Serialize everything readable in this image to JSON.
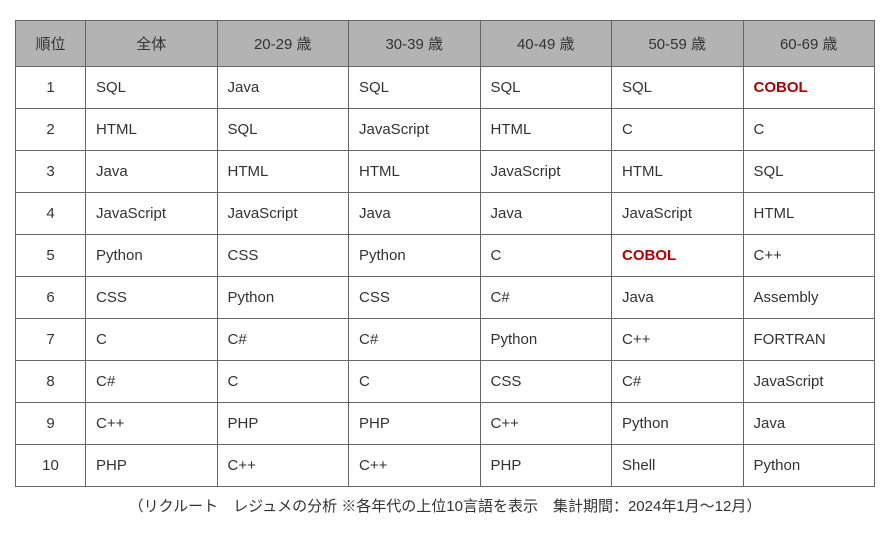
{
  "table": {
    "columns": [
      "順位",
      "全体",
      "20-29 歳",
      "30-39 歳",
      "40-49 歳",
      "50-59 歳",
      "60-69 歳"
    ],
    "column_widths": [
      "70px",
      "auto",
      "auto",
      "auto",
      "auto",
      "auto",
      "auto"
    ],
    "header_bg": "#b3b3b3",
    "border_color": "#666666",
    "text_color": "#333333",
    "highlight_color": "#b30000",
    "font_size": 15,
    "rows": [
      {
        "rank": "1",
        "cells": [
          {
            "text": "SQL",
            "hl": false
          },
          {
            "text": "Java",
            "hl": false
          },
          {
            "text": "SQL",
            "hl": false
          },
          {
            "text": "SQL",
            "hl": false
          },
          {
            "text": "SQL",
            "hl": false
          },
          {
            "text": "COBOL",
            "hl": true
          }
        ]
      },
      {
        "rank": "2",
        "cells": [
          {
            "text": "HTML",
            "hl": false
          },
          {
            "text": "SQL",
            "hl": false
          },
          {
            "text": "JavaScript",
            "hl": false
          },
          {
            "text": "HTML",
            "hl": false
          },
          {
            "text": "C",
            "hl": false
          },
          {
            "text": "C",
            "hl": false
          }
        ]
      },
      {
        "rank": "3",
        "cells": [
          {
            "text": "Java",
            "hl": false
          },
          {
            "text": "HTML",
            "hl": false
          },
          {
            "text": "HTML",
            "hl": false
          },
          {
            "text": "JavaScript",
            "hl": false
          },
          {
            "text": "HTML",
            "hl": false
          },
          {
            "text": "SQL",
            "hl": false
          }
        ]
      },
      {
        "rank": "4",
        "cells": [
          {
            "text": "JavaScript",
            "hl": false
          },
          {
            "text": "JavaScript",
            "hl": false
          },
          {
            "text": "Java",
            "hl": false
          },
          {
            "text": "Java",
            "hl": false
          },
          {
            "text": "JavaScript",
            "hl": false
          },
          {
            "text": "HTML",
            "hl": false
          }
        ]
      },
      {
        "rank": "5",
        "cells": [
          {
            "text": "Python",
            "hl": false
          },
          {
            "text": "CSS",
            "hl": false
          },
          {
            "text": "Python",
            "hl": false
          },
          {
            "text": "C",
            "hl": false
          },
          {
            "text": "COBOL",
            "hl": true
          },
          {
            "text": "C++",
            "hl": false
          }
        ]
      },
      {
        "rank": "6",
        "cells": [
          {
            "text": "CSS",
            "hl": false
          },
          {
            "text": "Python",
            "hl": false
          },
          {
            "text": "CSS",
            "hl": false
          },
          {
            "text": "C#",
            "hl": false
          },
          {
            "text": "Java",
            "hl": false
          },
          {
            "text": "Assembly",
            "hl": false
          }
        ]
      },
      {
        "rank": "7",
        "cells": [
          {
            "text": "C",
            "hl": false
          },
          {
            "text": "C#",
            "hl": false
          },
          {
            "text": "C#",
            "hl": false
          },
          {
            "text": "Python",
            "hl": false
          },
          {
            "text": "C++",
            "hl": false
          },
          {
            "text": "FORTRAN",
            "hl": false
          }
        ]
      },
      {
        "rank": "8",
        "cells": [
          {
            "text": "C#",
            "hl": false
          },
          {
            "text": "C",
            "hl": false
          },
          {
            "text": "C",
            "hl": false
          },
          {
            "text": "CSS",
            "hl": false
          },
          {
            "text": "C#",
            "hl": false
          },
          {
            "text": "JavaScript",
            "hl": false
          }
        ]
      },
      {
        "rank": "9",
        "cells": [
          {
            "text": "C++",
            "hl": false
          },
          {
            "text": "PHP",
            "hl": false
          },
          {
            "text": "PHP",
            "hl": false
          },
          {
            "text": "C++",
            "hl": false
          },
          {
            "text": "Python",
            "hl": false
          },
          {
            "text": "Java",
            "hl": false
          }
        ]
      },
      {
        "rank": "10",
        "cells": [
          {
            "text": "PHP",
            "hl": false
          },
          {
            "text": "C++",
            "hl": false
          },
          {
            "text": "C++",
            "hl": false
          },
          {
            "text": "PHP",
            "hl": false
          },
          {
            "text": "Shell",
            "hl": false
          },
          {
            "text": "Python",
            "hl": false
          }
        ]
      }
    ]
  },
  "caption": "（リクルート　レジュメの分析 ※各年代の上位10言語を表示　集計期間：2024年1月～12月）"
}
